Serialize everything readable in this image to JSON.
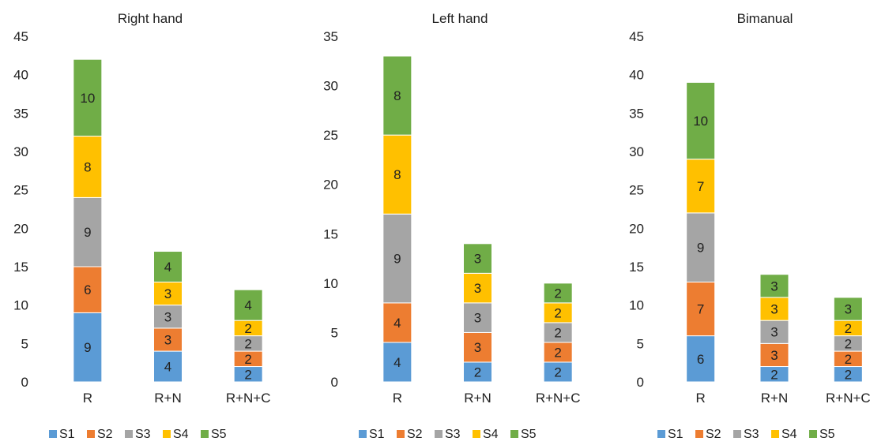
{
  "chart_data": [
    {
      "type": "bar",
      "stacked": true,
      "title": "Right hand",
      "categories": [
        "R",
        "R+N",
        "R+N+C"
      ],
      "ylim": [
        0,
        45
      ],
      "yticks": [
        0,
        5,
        10,
        15,
        20,
        25,
        30,
        35,
        40,
        45
      ],
      "legend": "bottom",
      "series": [
        {
          "name": "S1",
          "color": "#5b9bd5",
          "values": [
            9,
            4,
            2
          ]
        },
        {
          "name": "S2",
          "color": "#ed7d31",
          "values": [
            6,
            3,
            2
          ]
        },
        {
          "name": "S3",
          "color": "#a5a5a5",
          "values": [
            9,
            3,
            2
          ]
        },
        {
          "name": "S4",
          "color": "#ffc000",
          "values": [
            8,
            3,
            2
          ]
        },
        {
          "name": "S5",
          "color": "#70ad47",
          "values": [
            10,
            4,
            4
          ]
        }
      ]
    },
    {
      "type": "bar",
      "stacked": true,
      "title": "Left hand",
      "categories": [
        "R",
        "R+N",
        "R+N+C"
      ],
      "ylim": [
        0,
        35
      ],
      "yticks": [
        0,
        5,
        10,
        15,
        20,
        25,
        30,
        35
      ],
      "legend": "bottom",
      "series": [
        {
          "name": "S1",
          "color": "#5b9bd5",
          "values": [
            4,
            2,
            2
          ]
        },
        {
          "name": "S2",
          "color": "#ed7d31",
          "values": [
            4,
            3,
            2
          ]
        },
        {
          "name": "S3",
          "color": "#a5a5a5",
          "values": [
            9,
            3,
            2
          ]
        },
        {
          "name": "S4",
          "color": "#ffc000",
          "values": [
            8,
            3,
            2
          ]
        },
        {
          "name": "S5",
          "color": "#70ad47",
          "values": [
            8,
            3,
            2
          ]
        }
      ]
    },
    {
      "type": "bar",
      "stacked": true,
      "title": "Bimanual",
      "categories": [
        "R",
        "R+N",
        "R+N+C"
      ],
      "ylim": [
        0,
        45
      ],
      "yticks": [
        0,
        5,
        10,
        15,
        20,
        25,
        30,
        35,
        40,
        45
      ],
      "legend": "bottom",
      "series": [
        {
          "name": "S1",
          "color": "#5b9bd5",
          "values": [
            6,
            2,
            2
          ]
        },
        {
          "name": "S2",
          "color": "#ed7d31",
          "values": [
            7,
            3,
            2
          ]
        },
        {
          "name": "S3",
          "color": "#a5a5a5",
          "values": [
            9,
            3,
            2
          ]
        },
        {
          "name": "S4",
          "color": "#ffc000",
          "values": [
            7,
            3,
            2
          ]
        },
        {
          "name": "S5",
          "color": "#70ad47",
          "values": [
            10,
            3,
            3
          ]
        }
      ]
    }
  ]
}
